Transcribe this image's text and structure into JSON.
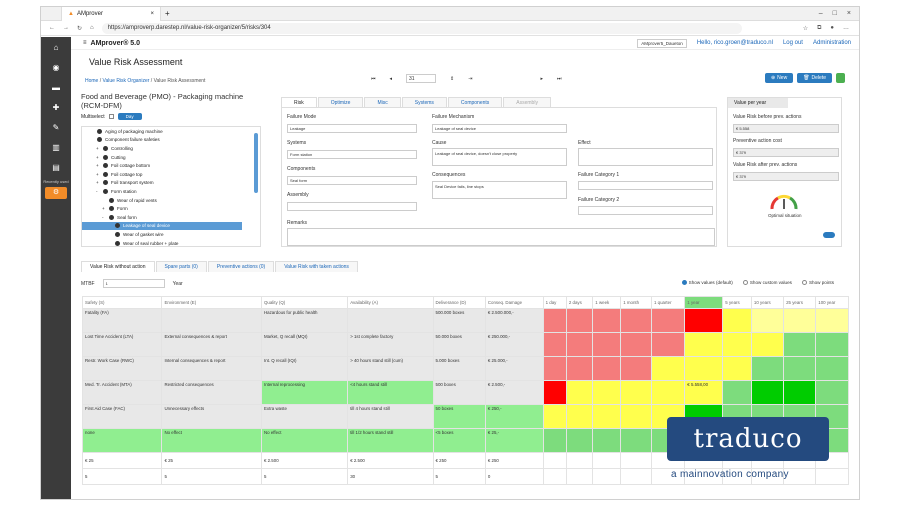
{
  "browser": {
    "tab_title": "AMprover",
    "url": "https://amproverp.darestep.nl/value-risk-organizer/5/risks/304"
  },
  "header": {
    "brand": "AMprover® 5.0",
    "db": "AMprover5_Daueton",
    "user": "Hello, rico.groen@traduco.nl",
    "logout": "Log out",
    "admin": "Administration"
  },
  "sidebar": {
    "recent": "Recently used"
  },
  "page": {
    "title": "Value Risk Assessment",
    "crumbs": [
      "Home",
      "Value Risk Organizer",
      "Value Risk Assessment"
    ],
    "page_num": "31",
    "new_label": "New",
    "delete_label": "Delete"
  },
  "left": {
    "title": "Food and Beverage (PMO) - Packaging machine (RCM-DFM)",
    "multiselect": "Multiselect",
    "day": "Day",
    "tree": [
      "Aging of packaging machine",
      "Component failure safeties",
      "Controlling",
      "Cutting",
      "Foil cottage bottom",
      "Foil cottage top",
      "Foil transport system",
      "Form station",
      "Wear of rapid vents",
      "Form",
      "Seal form",
      "Leakage of seal device",
      "Wear of gasket wire",
      "Wear of seal rubber + plate"
    ]
  },
  "tabs": [
    "Risk",
    "Optimize",
    "Misc",
    "Systems",
    "Components",
    "Assembly"
  ],
  "form": {
    "failure_mode_l": "Failure Mode",
    "failure_mode": "Leakage",
    "systems_l": "Systems",
    "systems": "Form station",
    "components_l": "Components",
    "components": "Seal form",
    "assembly_l": "Assembly",
    "remarks_l": "Remarks",
    "mech_l": "Failure Mechanism",
    "mech": "Leakage of seal device",
    "cause_l": "Cause",
    "cause": "Leakage of seal device, doesn't close property",
    "conseq_l": "Consequences",
    "conseq": "Seal Device fails, line stops",
    "effect_l": "Effect",
    "fc1_l": "Failure Category 1",
    "fc2_l": "Failure Category 2"
  },
  "vpy": {
    "head": "Value per year",
    "before_l": "Value Risk before prev. actions",
    "before": "€ 5.558",
    "prev_l": "Preventive action cost",
    "prev": "€ 379",
    "after_l": "Value Risk after prev. actions",
    "after": "€ 379",
    "opt": "Optimal situation"
  },
  "btabs": [
    "Value Risk without action",
    "Spare parts (0)",
    "Preventive actions (0)",
    "Value Risk with taken actions"
  ],
  "mtbf": {
    "label": "MTBF",
    "value": "1",
    "unit": "Year"
  },
  "radios": [
    "Show values (default)",
    "Show custom values",
    "Show points"
  ],
  "grid": {
    "headers": [
      "Safety (S)",
      "Environment (E)",
      "Quality (Q)",
      "Availability (A)",
      "Deliverance (D)",
      "Conseq. Damage",
      "1 day",
      "2 days",
      "1 week",
      "1 month",
      "1 quarter",
      "1 year",
      "5 years",
      "10 years",
      "25 years",
      "100 year"
    ],
    "rows": [
      [
        "Fatality (FA)",
        "",
        "Hazardous for public health",
        "",
        "500.000 boxes",
        "€ 2.500.000,-"
      ],
      [
        "Lost Time Accident (LTA)",
        "External consequences & report",
        "Market, Q recall (MQI)",
        "> 1st complete factory",
        "50.000 boxes",
        "€ 250.000,-"
      ],
      [
        "Restr. Work Case (RWC)",
        "Internal consequences & report",
        "Int. Q recall (IQI)",
        "> 40 hours stand still (cum)",
        "5.000 boxes",
        "€ 25.000,-"
      ],
      [
        "Med. Tr. Accident (MTA)",
        "Restricted consequences",
        "Internal reprocessing",
        "<4 hours stand still",
        "500 boxes",
        "€ 2.500,-"
      ],
      [
        "First Aid Case (FAC)",
        "Unnecessary effects",
        "Extra waste",
        "till 4 hours stand still",
        "50 boxes",
        "€ 250,-"
      ],
      [
        "none",
        "No effect",
        "No effect",
        "till 1/2 hours stand still",
        "<5 boxes",
        "€ 25,-"
      ]
    ],
    "cell_value": "€ 5.558,00",
    "sum1": [
      "€ 25",
      "€ 25",
      "€ 2.500",
      "€ 2.500",
      "€ 250",
      "€ 250"
    ],
    "sum2": [
      "5",
      "5",
      "5",
      "30",
      "5",
      "0"
    ]
  },
  "logo": {
    "name": "traduco",
    "tagline": "a mainnovation company"
  },
  "colors": {
    "R": "#f47c7c",
    "DR": "#ff0000",
    "Y": "#ffff4d",
    "LY": "#ffff99",
    "G": "#7ddc7d",
    "DG": "#00cc00",
    "LG": "#90ee90",
    "S": "#2b7bbf"
  },
  "matrix": [
    [
      "R",
      "R",
      "R",
      "R",
      "R",
      "DR",
      "Y",
      "LY",
      "LY",
      "LY"
    ],
    [
      "R",
      "R",
      "R",
      "R",
      "R",
      "Y",
      "Y",
      "Y",
      "G",
      "G"
    ],
    [
      "R",
      "R",
      "R",
      "R",
      "Y",
      "Y",
      "Y",
      "G",
      "G",
      "G"
    ],
    [
      "DR",
      "Y",
      "Y",
      "Y",
      "Y",
      "Y",
      "G",
      "DG",
      "DG",
      "G"
    ],
    [
      "Y",
      "Y",
      "Y",
      "Y",
      "Y",
      "DG",
      "G",
      "G",
      "G",
      "G"
    ],
    [
      "G",
      "G",
      "G",
      "G",
      "G",
      "DG",
      "G",
      "G",
      "G",
      "G"
    ]
  ]
}
